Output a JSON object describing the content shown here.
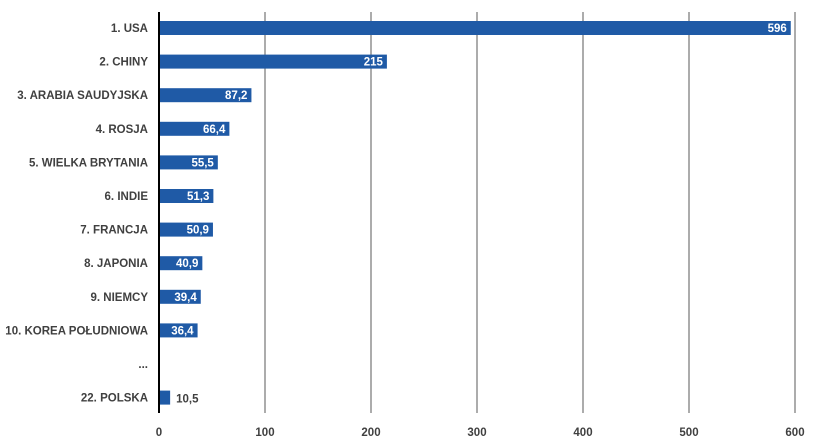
{
  "chart_data": {
    "type": "bar",
    "orientation": "horizontal",
    "title": "",
    "xlabel": "",
    "ylabel": "",
    "xlim": [
      0,
      600
    ],
    "xticks": [
      0,
      100,
      200,
      300,
      400,
      500,
      600
    ],
    "xtick_labels": [
      "0",
      "100",
      "200",
      "300",
      "400",
      "500",
      "600"
    ],
    "grid": true,
    "bar_color": "#1f5aa6",
    "categories": [
      "1. USA",
      "2. CHINY",
      "3. ARABIA SAUDYJSKA",
      "4. ROSJA",
      "5. WIELKA BRYTANIA",
      "6. INDIE",
      "7. FRANCJA",
      "8. JAPONIA",
      "9. NIEMCY",
      "10. KOREA POŁUDNIOWA",
      "...",
      "22. POLSKA"
    ],
    "values": [
      596,
      215,
      87.2,
      66.4,
      55.5,
      51.3,
      50.9,
      40.9,
      39.4,
      36.4,
      null,
      10.5
    ],
    "value_labels": [
      "596",
      "215",
      "87,2",
      "66,4",
      "55,5",
      "51,3",
      "50,9",
      "40,9",
      "39,4",
      "36,4",
      "",
      "10,5"
    ]
  }
}
